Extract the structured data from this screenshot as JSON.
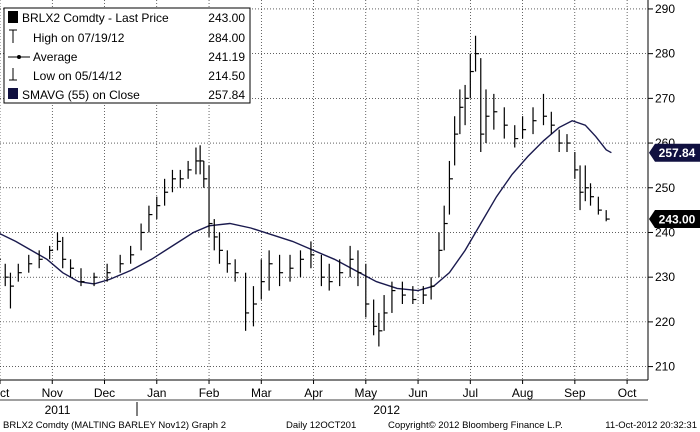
{
  "chart_data": {
    "type": "line",
    "ticker": "BRLX2 Comdty",
    "ylim": [
      207,
      292
    ],
    "grid": true,
    "legend_position": "top-left",
    "yticks": [
      210,
      220,
      230,
      240,
      250,
      260,
      270,
      280,
      290
    ],
    "xticks": [
      {
        "label": "Oct",
        "x": 0
      },
      {
        "label": "Nov",
        "x": 1
      },
      {
        "label": "Dec",
        "x": 2
      },
      {
        "label": "Jan",
        "x": 3
      },
      {
        "label": "Feb",
        "x": 4
      },
      {
        "label": "Mar",
        "x": 5
      },
      {
        "label": "Apr",
        "x": 6
      },
      {
        "label": "May",
        "x": 7
      },
      {
        "label": "Jun",
        "x": 8
      },
      {
        "label": "Jul",
        "x": 9
      },
      {
        "label": "Aug",
        "x": 10
      },
      {
        "label": "Sep",
        "x": 11
      },
      {
        "label": "Oct",
        "x": 12
      }
    ],
    "year_labels": [
      {
        "label": "2011",
        "x": 1.1
      },
      {
        "label": "2012",
        "x": 7.4
      }
    ],
    "xlim": [
      0,
      12.4
    ],
    "legend": {
      "title": "BRLX2 Comdty - Last Price",
      "title_value": "243.00",
      "rows": [
        {
          "label": "High on 07/19/12",
          "value": "284.00"
        },
        {
          "label": "Average",
          "value": "241.19"
        },
        {
          "label": "Low on 05/14/12",
          "value": "214.50"
        },
        {
          "label": "SMAVG (55) on Close",
          "value": "257.84"
        }
      ]
    },
    "last_price_label": "243.00",
    "sma_label": "257.84",
    "colors": {
      "price": "#000000",
      "sma": "#1a1a4e",
      "grid": "#000000",
      "sma_badge": "#101040",
      "price_badge": "#000000"
    },
    "series": [
      {
        "name": "BRLX2 Comdty - Last Price",
        "style": "hlc-bars",
        "points": [
          [
            -0.05,
            233,
            236.5,
            234
          ],
          [
            0.1,
            228,
            233,
            230
          ],
          [
            0.2,
            223,
            231,
            228
          ],
          [
            0.35,
            229,
            233,
            231
          ],
          [
            0.55,
            231,
            235,
            233
          ],
          [
            0.75,
            232,
            236,
            234
          ],
          [
            0.95,
            234,
            237,
            236
          ],
          [
            1.1,
            236,
            240,
            238
          ],
          [
            1.2,
            232,
            239,
            234
          ],
          [
            1.35,
            230,
            234,
            232
          ],
          [
            1.55,
            228,
            232,
            229
          ],
          [
            1.8,
            228,
            231,
            230
          ],
          [
            2.05,
            229,
            233,
            231
          ],
          [
            2.3,
            231,
            235,
            233
          ],
          [
            2.5,
            233,
            237,
            235
          ],
          [
            2.7,
            236,
            242,
            240
          ],
          [
            2.85,
            240,
            246,
            244
          ],
          [
            3.0,
            243,
            248,
            246
          ],
          [
            3.15,
            246,
            252,
            249
          ],
          [
            3.3,
            249,
            254,
            252
          ],
          [
            3.45,
            250,
            254,
            252
          ],
          [
            3.6,
            252,
            256,
            254
          ],
          [
            3.75,
            253,
            259,
            256
          ],
          [
            3.83,
            253,
            259.5,
            256
          ],
          [
            3.9,
            250,
            256,
            252
          ],
          [
            4.0,
            239,
            255,
            242
          ],
          [
            4.1,
            236,
            243,
            239
          ],
          [
            4.2,
            233,
            240,
            236
          ],
          [
            4.35,
            231,
            236,
            233
          ],
          [
            4.5,
            229,
            234,
            231
          ],
          [
            4.7,
            218,
            231,
            222
          ],
          [
            4.85,
            219,
            228,
            224
          ],
          [
            5.0,
            225,
            234,
            229
          ],
          [
            5.15,
            227,
            236,
            233
          ],
          [
            5.35,
            228,
            235,
            231
          ],
          [
            5.55,
            229,
            235,
            232
          ],
          [
            5.75,
            230,
            236,
            234
          ],
          [
            5.95,
            232,
            238,
            235
          ],
          [
            6.15,
            228,
            235,
            230
          ],
          [
            6.3,
            227,
            233,
            229
          ],
          [
            6.5,
            228,
            234,
            231
          ],
          [
            6.7,
            230,
            237,
            234
          ],
          [
            6.85,
            228,
            236,
            231
          ],
          [
            7.0,
            221,
            233,
            224
          ],
          [
            7.15,
            217,
            225,
            219
          ],
          [
            7.25,
            214.5,
            222,
            218
          ],
          [
            7.35,
            218,
            226,
            222
          ],
          [
            7.5,
            222,
            229,
            227
          ],
          [
            7.7,
            224,
            229,
            226
          ],
          [
            7.9,
            224,
            228,
            225
          ],
          [
            8.1,
            224,
            228,
            226
          ],
          [
            8.25,
            225,
            230,
            228
          ],
          [
            8.4,
            230,
            240,
            236
          ],
          [
            8.5,
            236,
            246,
            242
          ],
          [
            8.6,
            244,
            256,
            252
          ],
          [
            8.7,
            255,
            266,
            262
          ],
          [
            8.8,
            262,
            272,
            268
          ],
          [
            8.9,
            264,
            273,
            270
          ],
          [
            9.0,
            270,
            280,
            276
          ],
          [
            9.1,
            276,
            284,
            280
          ],
          [
            9.2,
            258,
            279,
            262
          ],
          [
            9.3,
            260,
            272,
            266
          ],
          [
            9.45,
            263,
            271,
            267
          ],
          [
            9.65,
            261,
            268,
            264
          ],
          [
            9.85,
            259,
            264,
            261
          ],
          [
            10.0,
            261,
            266,
            263
          ],
          [
            10.2,
            262,
            268,
            265
          ],
          [
            10.4,
            264,
            271,
            266
          ],
          [
            10.55,
            262,
            267,
            264
          ],
          [
            10.7,
            258,
            263,
            260
          ],
          [
            10.85,
            258,
            262,
            260
          ],
          [
            11.0,
            252,
            258,
            254
          ],
          [
            11.1,
            245,
            255,
            249
          ],
          [
            11.2,
            247,
            255,
            250
          ],
          [
            11.3,
            246,
            251,
            248
          ],
          [
            11.45,
            244,
            248,
            245
          ],
          [
            11.6,
            242.5,
            245,
            243
          ]
        ]
      },
      {
        "name": "SMAVG (55) on Close",
        "style": "line",
        "points": [
          [
            -0.05,
            240
          ],
          [
            0.3,
            238
          ],
          [
            0.6,
            236
          ],
          [
            0.9,
            234
          ],
          [
            1.2,
            231
          ],
          [
            1.5,
            229
          ],
          [
            1.8,
            228.5
          ],
          [
            2.1,
            229.5
          ],
          [
            2.5,
            231.5
          ],
          [
            2.9,
            234
          ],
          [
            3.3,
            237
          ],
          [
            3.7,
            240
          ],
          [
            4.0,
            241.5
          ],
          [
            4.4,
            242
          ],
          [
            4.8,
            241
          ],
          [
            5.2,
            239.5
          ],
          [
            5.6,
            238
          ],
          [
            6.0,
            236
          ],
          [
            6.4,
            234
          ],
          [
            6.8,
            231.5
          ],
          [
            7.2,
            229
          ],
          [
            7.6,
            227.5
          ],
          [
            8.0,
            227
          ],
          [
            8.3,
            228
          ],
          [
            8.6,
            231
          ],
          [
            8.9,
            236
          ],
          [
            9.2,
            242
          ],
          [
            9.5,
            248
          ],
          [
            9.8,
            253
          ],
          [
            10.1,
            257
          ],
          [
            10.4,
            260.5
          ],
          [
            10.7,
            263.5
          ],
          [
            10.95,
            265
          ],
          [
            11.2,
            264
          ],
          [
            11.4,
            261.5
          ],
          [
            11.6,
            258.5
          ],
          [
            11.7,
            257.84
          ]
        ]
      }
    ]
  },
  "footer": {
    "left": "BRLX2 Comdty (MALTING BARLEY  Nov12) Graph 2",
    "center_date": "Daily 12OCT201",
    "copyright": "Copyright© 2012 Bloomberg Finance L.P.",
    "timestamp": "11-Oct-2012 20:32:31"
  }
}
